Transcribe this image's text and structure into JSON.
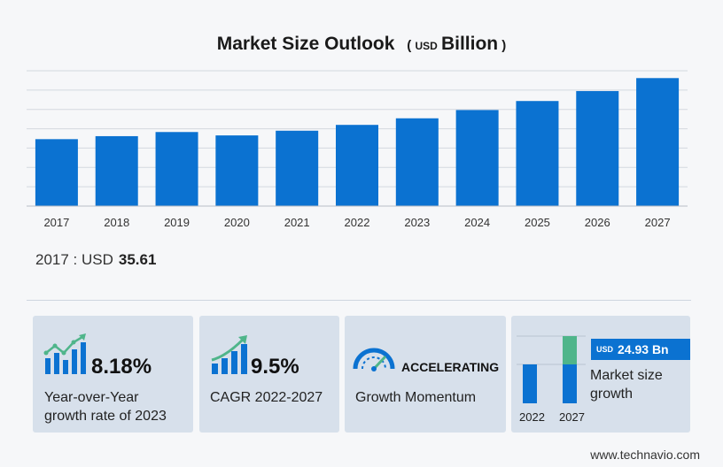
{
  "chart_data": {
    "type": "bar",
    "title": "Market Size Outlook",
    "unit_prefix": "USD",
    "unit_word": "Billion",
    "categories": [
      "2017",
      "2018",
      "2019",
      "2020",
      "2021",
      "2022",
      "2023",
      "2024",
      "2025",
      "2026",
      "2027"
    ],
    "values": [
      35.61,
      37.2,
      39.4,
      37.6,
      40.1,
      43.2,
      46.7,
      51.1,
      55.9,
      61.2,
      68.1
    ],
    "ylim": [
      0,
      72
    ],
    "grid": true,
    "bar_color": "#0b72d1"
  },
  "base_value": {
    "year_label": "2017 : USD",
    "value": "35.61"
  },
  "cards": {
    "yoy": {
      "value": "8.18%",
      "label_line1": "Year-over-Year",
      "label_line2": "growth rate of 2023"
    },
    "cagr": {
      "value": "9.5%",
      "label": "CAGR  2022-2027"
    },
    "momentum": {
      "value": "ACCELERATING",
      "label": "Growth Momentum"
    },
    "market": {
      "badge_prefix": "USD",
      "badge_value": "24.93 Bn",
      "label_line1": "Market size",
      "label_line2": "growth",
      "year_start": "2022",
      "year_end": "2027"
    }
  },
  "colors": {
    "accent": "#0b72d1",
    "green": "#4fb58a",
    "card_bg": "#d7e0eb"
  },
  "footer": "www.technavio.com"
}
